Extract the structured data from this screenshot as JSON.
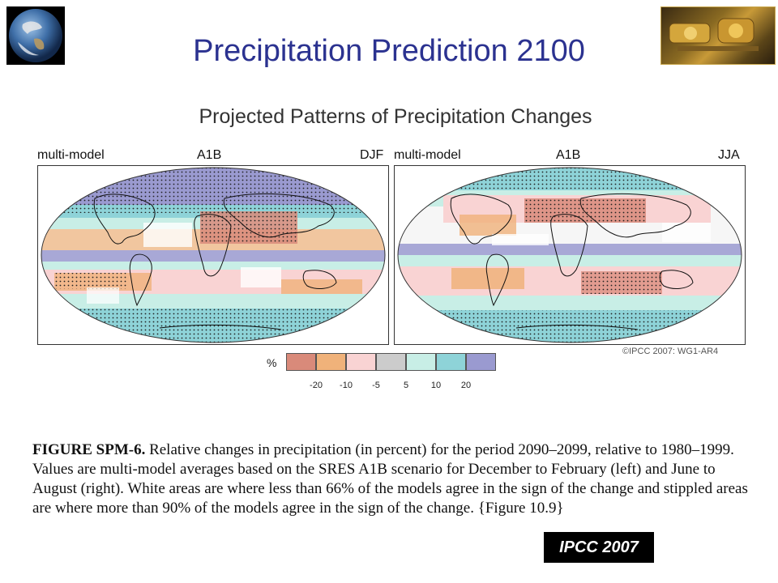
{
  "slide": {
    "title": "Precipitation Prediction 2100",
    "badge": "IPCC 2007"
  },
  "figure": {
    "title": "Projected Patterns of Precipitation Changes",
    "credit": "©IPCC 2007: WG1-AR4",
    "maps": [
      {
        "model": "multi-model",
        "scenario": "A1B",
        "season": "DJF"
      },
      {
        "model": "multi-model",
        "scenario": "A1B",
        "season": "JJA"
      }
    ],
    "colorbar": {
      "unit": "%",
      "ticks": [
        "-20",
        "-10",
        "-5",
        "5",
        "10",
        "20"
      ],
      "colors": [
        "#d98a7a",
        "#f0b27a",
        "#f9d3d3",
        "#cccccc",
        "#c8eee6",
        "#8ed3d8",
        "#9a9ad0"
      ]
    },
    "caption": {
      "label": "FIGURE SPM-6.",
      "text": " Relative changes in precipitation (in percent) for the period 2090–2099, relative to 1980–1999. Values are multi-model averages based on the SRES A1B scenario for December to February (left) and June to August (right). White areas are where less than 66% of the models agree in the sign of the change and stippled areas are where more than 90% of the models agree in the sign of the change. {Figure 10.9}"
    }
  }
}
